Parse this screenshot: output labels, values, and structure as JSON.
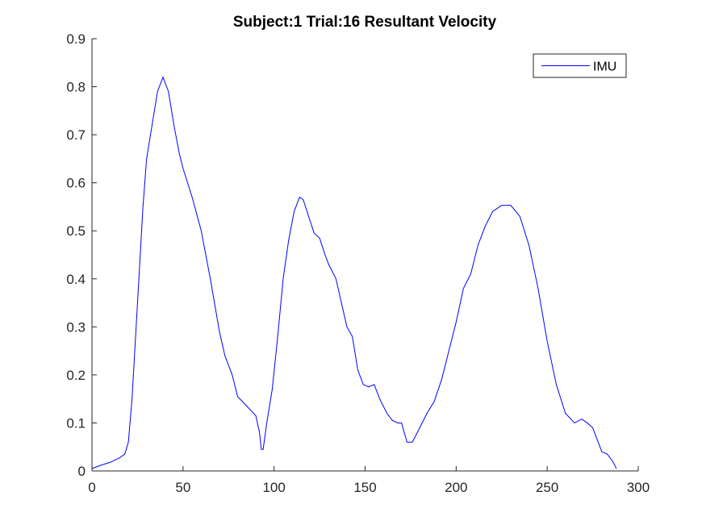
{
  "chart_data": {
    "type": "line",
    "title": "Subject:1 Trial:16 Resultant Velocity",
    "x": [
      0,
      5,
      10,
      15,
      18,
      20,
      22,
      25,
      28,
      30,
      33,
      36,
      39,
      42,
      45,
      48,
      50,
      55,
      60,
      65,
      70,
      73,
      77,
      80,
      85,
      90,
      92,
      93,
      94,
      96,
      99,
      102,
      105,
      108,
      111,
      114,
      116,
      119,
      122,
      125,
      128,
      130,
      134,
      137,
      140,
      143,
      146,
      149,
      152,
      155,
      158,
      162,
      165,
      168,
      170,
      173,
      176,
      180,
      184,
      188,
      192,
      196,
      200,
      204,
      208,
      212,
      216,
      220,
      225,
      230,
      235,
      240,
      245,
      250,
      255,
      260,
      265,
      269,
      272,
      275,
      278,
      280,
      283,
      286,
      288
    ],
    "series": [
      {
        "name": "IMU",
        "color": "#0000ff",
        "values": [
          0.005,
          0.012,
          0.018,
          0.027,
          0.035,
          0.06,
          0.15,
          0.35,
          0.55,
          0.65,
          0.72,
          0.79,
          0.82,
          0.79,
          0.72,
          0.66,
          0.63,
          0.57,
          0.5,
          0.4,
          0.29,
          0.24,
          0.2,
          0.155,
          0.135,
          0.115,
          0.08,
          0.045,
          0.045,
          0.1,
          0.17,
          0.28,
          0.4,
          0.48,
          0.54,
          0.57,
          0.565,
          0.53,
          0.495,
          0.485,
          0.45,
          0.43,
          0.4,
          0.35,
          0.3,
          0.28,
          0.21,
          0.18,
          0.175,
          0.18,
          0.15,
          0.12,
          0.105,
          0.1,
          0.1,
          0.06,
          0.06,
          0.09,
          0.12,
          0.145,
          0.19,
          0.25,
          0.31,
          0.38,
          0.41,
          0.47,
          0.51,
          0.54,
          0.553,
          0.553,
          0.53,
          0.47,
          0.38,
          0.27,
          0.18,
          0.12,
          0.1,
          0.108,
          0.1,
          0.09,
          0.06,
          0.04,
          0.035,
          0.02,
          0.005
        ]
      }
    ],
    "xlim": [
      0,
      300
    ],
    "xticks": [
      0,
      50,
      100,
      150,
      200,
      250,
      300
    ],
    "ylim": [
      0,
      0.9
    ],
    "yticks": [
      0,
      0.1,
      0.2,
      0.3,
      0.4,
      0.5,
      0.6,
      0.7,
      0.8,
      0.9
    ],
    "legend": "northeast",
    "grid": false
  }
}
